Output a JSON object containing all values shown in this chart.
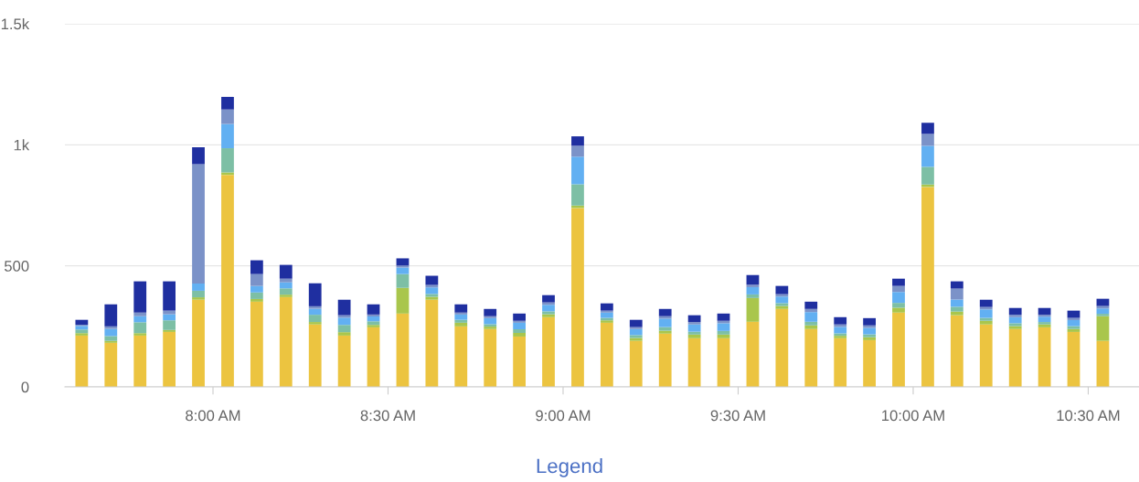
{
  "chart_data": {
    "type": "bar",
    "stacked": true,
    "x": [
      7.625,
      7.7083,
      7.7917,
      7.875,
      7.9583,
      8.0417,
      8.125,
      8.2083,
      8.2917,
      8.375,
      8.4583,
      8.5417,
      8.625,
      8.7083,
      8.7917,
      8.875,
      8.9583,
      9.0417,
      9.125,
      9.2083,
      9.2917,
      9.375,
      9.4583,
      9.5417,
      9.625,
      9.7083,
      9.7917,
      9.875,
      9.9583,
      10.0417,
      10.125,
      10.2083,
      10.2917,
      10.375,
      10.4583,
      10.5417
    ],
    "series": [
      {
        "color": "#ecc440",
        "values": [
          212,
          182,
          212,
          227,
          360,
          876,
          352,
          371,
          258,
          212,
          246,
          303,
          360,
          250,
          239,
          208,
          288,
          739,
          265,
          190,
          220,
          201,
          201,
          269,
          322,
          239,
          201,
          193,
          307,
          826,
          296,
          258,
          239,
          246,
          227,
          190
        ]
      },
      {
        "color": "#a9c64c",
        "values": [
          10,
          8,
          10,
          8,
          10,
          10,
          11,
          10,
          10,
          14,
          10,
          106,
          12,
          15,
          10,
          15,
          12,
          10,
          10,
          12,
          12,
          15,
          15,
          98,
          12,
          15,
          10,
          12,
          20,
          10,
          15,
          15,
          12,
          12,
          12,
          102
        ]
      },
      {
        "color": "#7dbfa5",
        "values": [
          15,
          20,
          45,
          40,
          27,
          100,
          27,
          26,
          30,
          30,
          15,
          57,
          12,
          12,
          10,
          15,
          12,
          88,
          10,
          12,
          15,
          12,
          15,
          15,
          12,
          15,
          10,
          12,
          20,
          73,
          20,
          12,
          12,
          10,
          12,
          10
        ]
      },
      {
        "color": "#62b0f2",
        "values": [
          15,
          30,
          25,
          25,
          30,
          100,
          27,
          25,
          25,
          30,
          20,
          27,
          27,
          22,
          25,
          27,
          27,
          114,
          22,
          25,
          35,
          30,
          32,
          30,
          27,
          40,
          27,
          27,
          45,
          87,
          30,
          35,
          25,
          22,
          25,
          22
        ]
      },
      {
        "color": "#7b92c8",
        "values": [
          5,
          10,
          15,
          15,
          493,
          60,
          49,
          15,
          10,
          10,
          8,
          8,
          10,
          8,
          8,
          8,
          10,
          45,
          8,
          8,
          10,
          10,
          10,
          10,
          10,
          13,
          10,
          10,
          25,
          49,
          45,
          10,
          10,
          8,
          9,
          10
        ]
      },
      {
        "color": "#1f2fa0",
        "values": [
          20,
          91,
          129,
          121,
          70,
          52,
          57,
          57,
          95,
          64,
          42,
          30,
          38,
          34,
          30,
          30,
          30,
          39,
          30,
          30,
          30,
          28,
          30,
          40,
          34,
          30,
          30,
          30,
          30,
          46,
          30,
          30,
          28,
          28,
          30,
          30
        ]
      }
    ],
    "xlim": [
      7.577,
      10.645
    ],
    "xticks": [
      {
        "value": 8,
        "label": "8:00 AM"
      },
      {
        "value": 8.5,
        "label": "8:30 AM"
      },
      {
        "value": 9,
        "label": "9:00 AM"
      },
      {
        "value": 9.5,
        "label": "9:30 AM"
      },
      {
        "value": 10,
        "label": "10:00 AM"
      },
      {
        "value": 10.5,
        "label": "10:30 AM"
      }
    ],
    "ylim": [
      0,
      1500
    ],
    "yticks": [
      0,
      500,
      {
        "value": 1000,
        "label": "1k"
      },
      {
        "value": 1500,
        "label": "1.5k"
      }
    ],
    "grid": "y",
    "legend": false,
    "annotations": [
      "Legend"
    ]
  }
}
